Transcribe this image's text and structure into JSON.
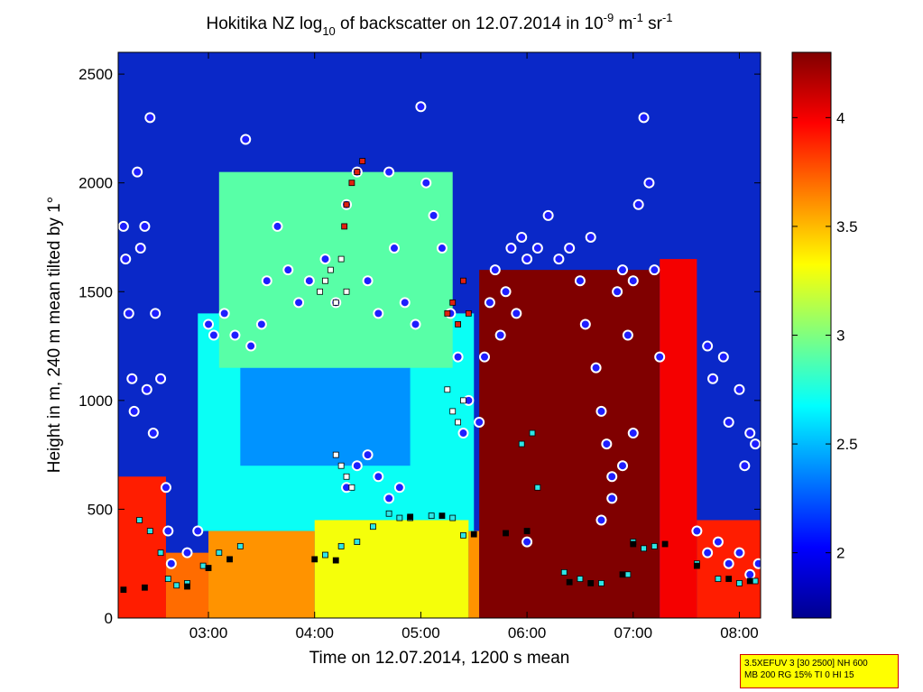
{
  "chart_data": {
    "type": "heatmap",
    "title_parts": {
      "prefix": "Hokitika NZ log",
      "sub": "10",
      "middle": " of backscatter on 12.07.2014 in 10",
      "sup1": "-9",
      "unit1": " m",
      "sup2": "-1",
      "unit2": " sr",
      "sup3": "-1"
    },
    "xlabel": "Time on 12.07.2014, 1200 s mean",
    "ylabel": "Height in m, 240 m mean tilted by 1°",
    "x_range_hours": [
      2.15,
      8.2
    ],
    "xticks": [
      {
        "value": 3,
        "label": "03:00"
      },
      {
        "value": 4,
        "label": "04:00"
      },
      {
        "value": 5,
        "label": "05:00"
      },
      {
        "value": 6,
        "label": "06:00"
      },
      {
        "value": 7,
        "label": "07:00"
      },
      {
        "value": 8,
        "label": "08:00"
      }
    ],
    "ylim": [
      0,
      2600
    ],
    "yticks": [
      {
        "value": 0,
        "label": "0"
      },
      {
        "value": 500,
        "label": "500"
      },
      {
        "value": 1000,
        "label": "1000"
      },
      {
        "value": 1500,
        "label": "1500"
      },
      {
        "value": 2000,
        "label": "2000"
      },
      {
        "value": 2500,
        "label": "2500"
      }
    ],
    "colorbar": {
      "range": [
        1.7,
        4.3
      ],
      "ticks": [
        {
          "value": 2,
          "label": "2"
        },
        {
          "value": 2.5,
          "label": "2.5"
        },
        {
          "value": 3,
          "label": "3"
        },
        {
          "value": 3.5,
          "label": "3.5"
        },
        {
          "value": 4,
          "label": "4"
        }
      ],
      "colormap": "jet"
    },
    "layers": {
      "background_value": 1.8,
      "near_surface_aerosol": [
        {
          "t0": 2.15,
          "t1": 2.6,
          "h0": 0,
          "h1": 650,
          "v": 3.9
        },
        {
          "t0": 2.6,
          "t1": 3.0,
          "h0": 0,
          "h1": 300,
          "v": 3.7
        },
        {
          "t0": 3.0,
          "t1": 4.0,
          "h0": 0,
          "h1": 400,
          "v": 3.6
        },
        {
          "t0": 4.0,
          "t1": 5.45,
          "h0": 0,
          "h1": 450,
          "v": 3.3
        },
        {
          "t0": 5.45,
          "t1": 5.55,
          "h0": 0,
          "h1": 400,
          "v": 3.6
        },
        {
          "t0": 5.55,
          "t1": 7.25,
          "h0": 0,
          "h1": 1600,
          "v": 4.3
        },
        {
          "t0": 7.25,
          "t1": 7.6,
          "h0": 0,
          "h1": 1650,
          "v": 4.0
        },
        {
          "t0": 7.6,
          "t1": 8.2,
          "h0": 0,
          "h1": 450,
          "v": 3.9
        }
      ],
      "mid_aerosol": [
        {
          "t0": 2.9,
          "t1": 5.5,
          "h0": 400,
          "h1": 1400,
          "v": 2.7
        },
        {
          "t0": 3.3,
          "t1": 4.9,
          "h0": 700,
          "h1": 1150,
          "v": 2.4
        },
        {
          "t0": 3.1,
          "t1": 5.3,
          "h0": 1150,
          "h1": 2050,
          "v": 2.9
        }
      ]
    },
    "series": [
      {
        "name": "",
        "marker": "circle-white-blue",
        "points": [
          [
            2.2,
            1800
          ],
          [
            2.22,
            1650
          ],
          [
            2.25,
            1400
          ],
          [
            2.28,
            1100
          ],
          [
            2.3,
            950
          ],
          [
            2.33,
            2050
          ],
          [
            2.36,
            1700
          ],
          [
            2.4,
            1800
          ],
          [
            2.42,
            1050
          ],
          [
            2.45,
            2300
          ],
          [
            2.48,
            850
          ],
          [
            2.5,
            1400
          ],
          [
            2.55,
            1100
          ],
          [
            2.6,
            600
          ],
          [
            2.62,
            400
          ],
          [
            2.65,
            250
          ],
          [
            2.8,
            300
          ],
          [
            2.9,
            400
          ],
          [
            3.0,
            1350
          ],
          [
            3.05,
            1300
          ],
          [
            3.15,
            1400
          ],
          [
            3.25,
            1300
          ],
          [
            3.35,
            2200
          ],
          [
            3.4,
            1250
          ],
          [
            3.5,
            1350
          ],
          [
            3.55,
            1550
          ],
          [
            3.65,
            1800
          ],
          [
            3.75,
            1600
          ],
          [
            3.85,
            1450
          ],
          [
            3.95,
            1550
          ],
          [
            4.1,
            1650
          ],
          [
            4.2,
            1450
          ],
          [
            4.3,
            1900
          ],
          [
            4.4,
            2050
          ],
          [
            4.5,
            1550
          ],
          [
            4.6,
            1400
          ],
          [
            4.7,
            2050
          ],
          [
            4.75,
            1700
          ],
          [
            4.85,
            1450
          ],
          [
            4.95,
            1350
          ],
          [
            5.0,
            2350
          ],
          [
            5.05,
            2000
          ],
          [
            5.12,
            1850
          ],
          [
            5.2,
            1700
          ],
          [
            5.28,
            1400
          ],
          [
            5.35,
            1200
          ],
          [
            5.4,
            850
          ],
          [
            5.45,
            1000
          ],
          [
            4.3,
            600
          ],
          [
            4.4,
            700
          ],
          [
            4.5,
            750
          ],
          [
            4.6,
            650
          ],
          [
            4.7,
            550
          ],
          [
            4.8,
            600
          ],
          [
            5.55,
            900
          ],
          [
            5.6,
            1200
          ],
          [
            5.65,
            1450
          ],
          [
            5.7,
            1600
          ],
          [
            5.75,
            1300
          ],
          [
            5.8,
            1500
          ],
          [
            5.85,
            1700
          ],
          [
            5.9,
            1400
          ],
          [
            5.95,
            1750
          ],
          [
            6.0,
            1650
          ],
          [
            6.1,
            1700
          ],
          [
            6.2,
            1850
          ],
          [
            6.3,
            1650
          ],
          [
            6.4,
            1700
          ],
          [
            6.5,
            1550
          ],
          [
            6.55,
            1350
          ],
          [
            6.6,
            1750
          ],
          [
            6.65,
            1150
          ],
          [
            6.7,
            950
          ],
          [
            6.75,
            800
          ],
          [
            6.8,
            650
          ],
          [
            6.85,
            1500
          ],
          [
            6.9,
            1600
          ],
          [
            6.95,
            1300
          ],
          [
            7.0,
            1550
          ],
          [
            7.05,
            1900
          ],
          [
            7.1,
            2300
          ],
          [
            7.15,
            2000
          ],
          [
            7.2,
            1600
          ],
          [
            7.25,
            1200
          ],
          [
            6.0,
            350
          ],
          [
            6.7,
            450
          ],
          [
            6.8,
            550
          ],
          [
            6.9,
            700
          ],
          [
            7.0,
            850
          ],
          [
            7.7,
            1250
          ],
          [
            7.75,
            1100
          ],
          [
            7.85,
            1200
          ],
          [
            7.9,
            900
          ],
          [
            8.0,
            1050
          ],
          [
            8.05,
            700
          ],
          [
            8.1,
            850
          ],
          [
            8.15,
            800
          ],
          [
            7.6,
            400
          ],
          [
            7.7,
            300
          ],
          [
            7.8,
            350
          ],
          [
            7.9,
            250
          ],
          [
            8.0,
            300
          ],
          [
            8.1,
            200
          ],
          [
            8.18,
            250
          ]
        ]
      },
      {
        "name": "",
        "marker": "square-cyan",
        "points": [
          [
            2.35,
            450
          ],
          [
            2.45,
            400
          ],
          [
            2.55,
            300
          ],
          [
            2.62,
            180
          ],
          [
            2.7,
            150
          ],
          [
            2.8,
            160
          ],
          [
            2.95,
            240
          ],
          [
            3.1,
            300
          ],
          [
            3.3,
            330
          ],
          [
            4.1,
            290
          ],
          [
            4.25,
            330
          ],
          [
            4.4,
            350
          ],
          [
            4.55,
            420
          ],
          [
            4.7,
            480
          ],
          [
            4.8,
            460
          ],
          [
            4.9,
            460
          ],
          [
            5.1,
            470
          ],
          [
            5.3,
            460
          ],
          [
            5.4,
            380
          ],
          [
            5.95,
            800
          ],
          [
            6.05,
            850
          ],
          [
            6.1,
            600
          ],
          [
            6.35,
            210
          ],
          [
            6.5,
            180
          ],
          [
            6.7,
            160
          ],
          [
            6.95,
            200
          ],
          [
            7.0,
            350
          ],
          [
            7.1,
            320
          ],
          [
            7.2,
            330
          ],
          [
            7.6,
            250
          ],
          [
            7.8,
            180
          ],
          [
            8.0,
            160
          ],
          [
            8.15,
            170
          ]
        ]
      },
      {
        "name": "",
        "marker": "square-white",
        "points": [
          [
            4.05,
            1500
          ],
          [
            4.1,
            1550
          ],
          [
            4.15,
            1600
          ],
          [
            4.2,
            1450
          ],
          [
            4.25,
            1650
          ],
          [
            4.3,
            1500
          ],
          [
            4.2,
            750
          ],
          [
            4.25,
            700
          ],
          [
            4.3,
            650
          ],
          [
            4.35,
            600
          ],
          [
            5.25,
            1050
          ],
          [
            5.3,
            950
          ],
          [
            5.35,
            900
          ],
          [
            5.4,
            1000
          ]
        ]
      },
      {
        "name": "",
        "marker": "square-red",
        "points": [
          [
            4.3,
            1900
          ],
          [
            4.35,
            2000
          ],
          [
            4.4,
            2050
          ],
          [
            4.45,
            2100
          ],
          [
            4.28,
            1800
          ],
          [
            5.25,
            1400
          ],
          [
            5.3,
            1450
          ],
          [
            5.35,
            1350
          ],
          [
            5.4,
            1550
          ],
          [
            5.45,
            1400
          ]
        ]
      },
      {
        "name": "",
        "marker": "square-black",
        "points": [
          [
            2.2,
            130
          ],
          [
            2.4,
            140
          ],
          [
            2.8,
            145
          ],
          [
            3.0,
            230
          ],
          [
            3.2,
            270
          ],
          [
            4.0,
            270
          ],
          [
            4.2,
            265
          ],
          [
            4.9,
            465
          ],
          [
            5.2,
            470
          ],
          [
            5.5,
            385
          ],
          [
            5.8,
            390
          ],
          [
            6.0,
            400
          ],
          [
            6.4,
            165
          ],
          [
            6.6,
            160
          ],
          [
            6.9,
            200
          ],
          [
            7.0,
            340
          ],
          [
            7.3,
            340
          ],
          [
            7.6,
            240
          ],
          [
            7.9,
            180
          ],
          [
            8.1,
            170
          ]
        ]
      }
    ]
  },
  "info_box": {
    "line1": "3.5XEFUV 3 [30 2500] NH 600",
    "line2": "MB 200 RG 15% TI 0 HI 15"
  }
}
